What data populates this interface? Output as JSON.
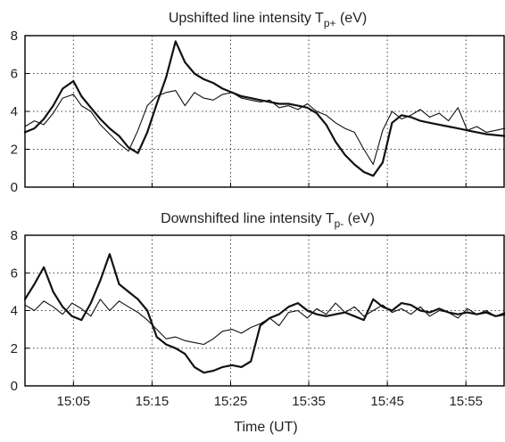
{
  "chart_data": [
    {
      "type": "line",
      "title": "Upshifted line intensity T",
      "title_sub": "p+",
      "title_suffix": " (eV)",
      "xlabel": "",
      "ylabel": "",
      "x_unit": "minutes (UT)",
      "xlim": [
        14.98,
        16.0
      ],
      "ylim": [
        0,
        8
      ],
      "yticks": [
        0,
        2,
        4,
        6,
        8
      ],
      "xticks": [
        15.083,
        15.25,
        15.417,
        15.583,
        15.75,
        15.917
      ],
      "grid": true,
      "series": [
        {
          "style": "thick",
          "x": [
            14.98,
            15.0,
            15.02,
            15.04,
            15.06,
            15.083,
            15.1,
            15.12,
            15.14,
            15.16,
            15.18,
            15.2,
            15.22,
            15.24,
            15.26,
            15.28,
            15.3,
            15.32,
            15.34,
            15.36,
            15.38,
            15.4,
            15.42,
            15.44,
            15.46,
            15.48,
            15.5,
            15.52,
            15.54,
            15.56,
            15.58,
            15.6,
            15.62,
            15.64,
            15.66,
            15.68,
            15.7,
            15.72,
            15.74,
            15.76,
            15.78,
            15.8,
            15.82,
            15.84,
            15.86,
            15.88,
            15.9,
            15.92,
            15.94,
            15.96,
            15.98,
            16.0
          ],
          "y": [
            2.9,
            3.1,
            3.6,
            4.3,
            5.2,
            5.6,
            4.8,
            4.2,
            3.6,
            3.1,
            2.7,
            2.1,
            1.8,
            2.9,
            4.4,
            5.8,
            7.7,
            6.6,
            6.0,
            5.7,
            5.5,
            5.2,
            5.0,
            4.8,
            4.7,
            4.6,
            4.5,
            4.4,
            4.4,
            4.3,
            4.2,
            3.9,
            3.3,
            2.4,
            1.7,
            1.2,
            0.8,
            0.6,
            1.3,
            3.4,
            3.8,
            3.7,
            3.5,
            3.4,
            3.3,
            3.2,
            3.1,
            3.0,
            2.9,
            2.8,
            2.75,
            2.7
          ]
        },
        {
          "style": "thin",
          "x": [
            14.98,
            15.0,
            15.02,
            15.04,
            15.06,
            15.083,
            15.1,
            15.12,
            15.14,
            15.16,
            15.18,
            15.2,
            15.22,
            15.24,
            15.26,
            15.28,
            15.3,
            15.32,
            15.34,
            15.36,
            15.38,
            15.4,
            15.42,
            15.44,
            15.46,
            15.48,
            15.5,
            15.52,
            15.54,
            15.56,
            15.58,
            15.6,
            15.62,
            15.64,
            15.66,
            15.68,
            15.7,
            15.72,
            15.74,
            15.76,
            15.78,
            15.8,
            15.82,
            15.84,
            15.86,
            15.88,
            15.9,
            15.92,
            15.94,
            15.96,
            15.98,
            16.0
          ],
          "y": [
            3.2,
            3.5,
            3.3,
            3.9,
            4.7,
            4.9,
            4.3,
            4.0,
            3.3,
            2.8,
            2.3,
            1.9,
            3.0,
            4.3,
            4.8,
            5.0,
            5.1,
            4.3,
            5.0,
            4.7,
            4.6,
            4.9,
            5.0,
            4.7,
            4.6,
            4.5,
            4.6,
            4.2,
            4.3,
            4.1,
            4.4,
            4.0,
            3.8,
            3.4,
            3.1,
            2.9,
            2.0,
            1.2,
            3.0,
            4.0,
            3.6,
            3.8,
            4.1,
            3.7,
            3.9,
            3.5,
            4.2,
            3.0,
            3.2,
            2.9,
            3.0,
            3.1
          ]
        }
      ]
    },
    {
      "type": "line",
      "title": "Downshifted line intensity T",
      "title_sub": "p-",
      "title_suffix": " (eV)",
      "xlabel": "Time (UT)",
      "ylabel": "",
      "x_unit": "minutes (UT)",
      "xlim": [
        14.98,
        16.0
      ],
      "ylim": [
        0,
        8
      ],
      "yticks": [
        0,
        2,
        4,
        6,
        8
      ],
      "xticks": [
        15.083,
        15.25,
        15.417,
        15.583,
        15.75,
        15.917
      ],
      "xtick_labels": [
        "15:05",
        "15:15",
        "15:25",
        "15:35",
        "15:45",
        "15:55"
      ],
      "grid": true,
      "series": [
        {
          "style": "thick",
          "x": [
            14.98,
            15.0,
            15.02,
            15.04,
            15.06,
            15.08,
            15.1,
            15.12,
            15.14,
            15.16,
            15.18,
            15.2,
            15.22,
            15.24,
            15.26,
            15.28,
            15.3,
            15.32,
            15.34,
            15.36,
            15.38,
            15.4,
            15.42,
            15.44,
            15.46,
            15.48,
            15.5,
            15.52,
            15.54,
            15.56,
            15.58,
            15.6,
            15.62,
            15.64,
            15.66,
            15.68,
            15.7,
            15.72,
            15.74,
            15.76,
            15.78,
            15.8,
            15.82,
            15.84,
            15.86,
            15.88,
            15.9,
            15.92,
            15.94,
            15.96,
            15.98,
            16.0
          ],
          "y": [
            4.6,
            5.4,
            6.3,
            5.0,
            4.2,
            3.7,
            3.5,
            4.4,
            5.6,
            7.0,
            5.4,
            5.0,
            4.6,
            4.0,
            2.6,
            2.2,
            2.0,
            1.7,
            1.0,
            0.7,
            0.8,
            1.0,
            1.1,
            1.0,
            1.3,
            3.2,
            3.6,
            3.8,
            4.2,
            4.4,
            4.0,
            3.8,
            3.7,
            3.8,
            3.9,
            3.7,
            3.5,
            4.6,
            4.2,
            4.0,
            4.4,
            4.3,
            4.0,
            3.9,
            4.1,
            3.9,
            3.8,
            3.9,
            3.8,
            3.9,
            3.7,
            3.8
          ]
        },
        {
          "style": "thin",
          "x": [
            14.98,
            15.0,
            15.02,
            15.04,
            15.06,
            15.08,
            15.1,
            15.12,
            15.14,
            15.16,
            15.18,
            15.2,
            15.22,
            15.24,
            15.26,
            15.28,
            15.3,
            15.32,
            15.34,
            15.36,
            15.38,
            15.4,
            15.42,
            15.44,
            15.46,
            15.48,
            15.5,
            15.52,
            15.54,
            15.56,
            15.58,
            15.6,
            15.62,
            15.64,
            15.66,
            15.68,
            15.7,
            15.72,
            15.74,
            15.76,
            15.78,
            15.8,
            15.82,
            15.84,
            15.86,
            15.88,
            15.9,
            15.92,
            15.94,
            15.96,
            15.98,
            16.0
          ],
          "y": [
            4.3,
            4.0,
            4.5,
            4.2,
            3.8,
            4.4,
            4.1,
            3.7,
            4.6,
            4.0,
            4.5,
            4.2,
            3.9,
            3.5,
            3.0,
            2.5,
            2.6,
            2.4,
            2.3,
            2.2,
            2.5,
            2.9,
            3.0,
            2.8,
            3.1,
            3.3,
            3.6,
            3.2,
            3.9,
            4.0,
            3.6,
            4.1,
            3.8,
            4.4,
            3.9,
            4.2,
            3.7,
            4.0,
            4.3,
            3.9,
            4.1,
            3.8,
            4.2,
            3.7,
            4.0,
            3.9,
            3.6,
            4.1,
            3.8,
            4.0,
            3.7,
            3.9
          ]
        }
      ]
    }
  ]
}
